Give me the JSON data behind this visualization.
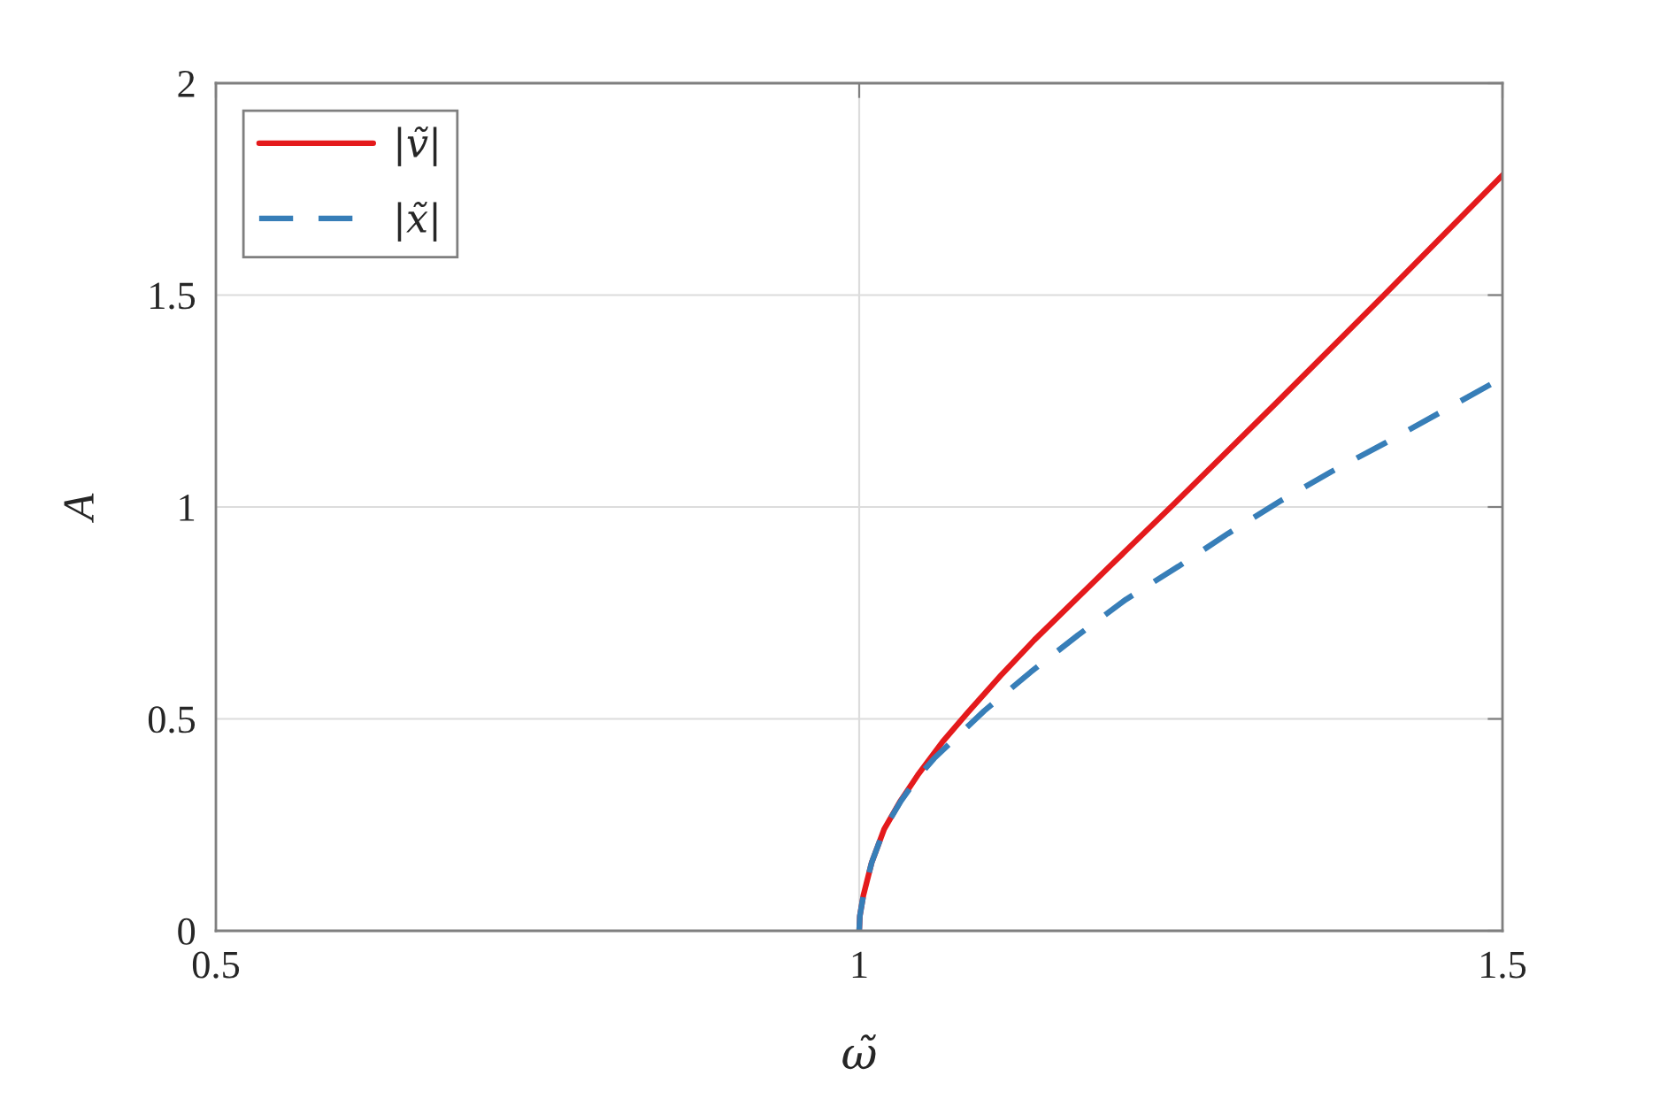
{
  "chart_data": {
    "type": "line",
    "xlabel": "ω̃",
    "ylabel": "A",
    "xlim": [
      0.5,
      1.5
    ],
    "ylim": [
      0,
      2
    ],
    "xticks": [
      0.5,
      1,
      1.5
    ],
    "yticks": [
      0,
      0.5,
      1,
      1.5,
      2
    ],
    "grid": true,
    "legend": "top left",
    "series": [
      {
        "name": "|ṽ|",
        "color": "#e41a1c",
        "line_style": "solid",
        "x": [
          1,
          1.0005,
          1.0032,
          1.0097,
          1.0194,
          1.0324,
          1.0454,
          1.0648,
          1.0843,
          1.1102,
          1.1361,
          1.1944,
          1.2463,
          1.324,
          1.4083,
          1.5
        ],
        "values": [
          0,
          0.035,
          0.083,
          0.161,
          0.24,
          0.308,
          0.367,
          0.446,
          0.515,
          0.603,
          0.686,
          0.859,
          1.012,
          1.245,
          1.501,
          1.783
        ]
      },
      {
        "name": "|x̃|",
        "color": "#377eb8",
        "line_style": "dashed",
        "x": [
          1,
          1.0005,
          1.0032,
          1.0097,
          1.0194,
          1.0324,
          1.0454,
          1.0583,
          1.0972,
          1.1335,
          1.1698,
          1.2074,
          1.2482,
          1.2865,
          1.3273,
          1.3668,
          1.4089,
          1.4498,
          1.5
        ],
        "values": [
          0,
          0.035,
          0.083,
          0.161,
          0.24,
          0.306,
          0.362,
          0.407,
          0.519,
          0.611,
          0.697,
          0.782,
          0.86,
          0.937,
          1.014,
          1.083,
          1.151,
          1.22,
          1.305
        ]
      }
    ]
  }
}
